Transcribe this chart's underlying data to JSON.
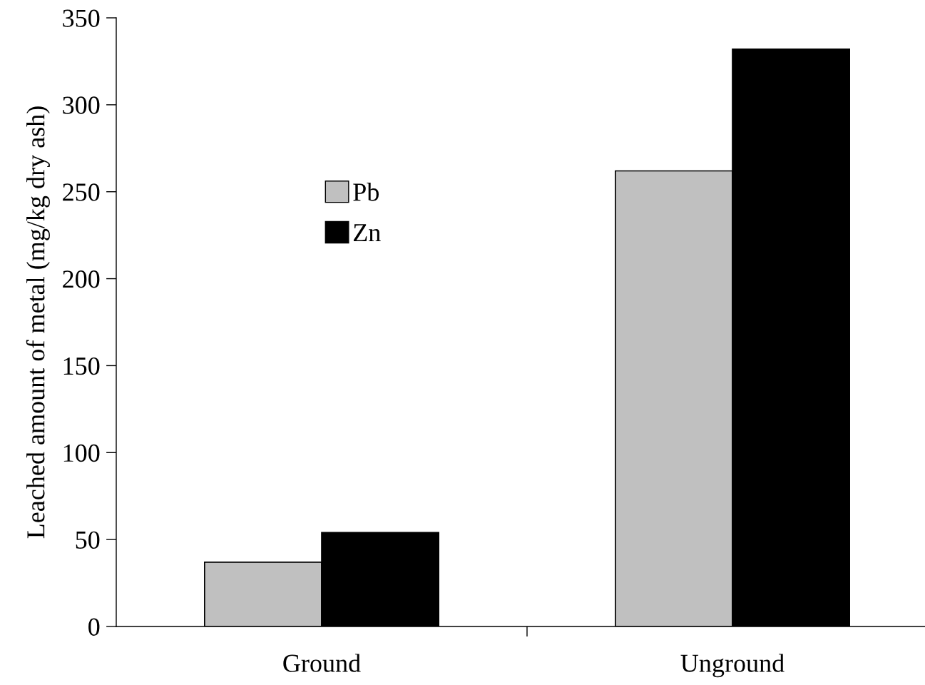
{
  "chart_data": {
    "type": "bar",
    "ylabel": "Leached amount of metal (mg/kg dry ash)",
    "categories": [
      "Ground",
      "Unground"
    ],
    "series": [
      {
        "name": "Pb",
        "color": "#c0c0c0",
        "values": [
          37,
          262
        ]
      },
      {
        "name": "Zn",
        "color": "#000000",
        "values": [
          54,
          332
        ]
      }
    ],
    "ylim": [
      0,
      350
    ],
    "yticks": [
      0,
      50,
      100,
      150,
      200,
      250,
      300,
      350
    ],
    "grid": false,
    "legend": "upper left"
  }
}
